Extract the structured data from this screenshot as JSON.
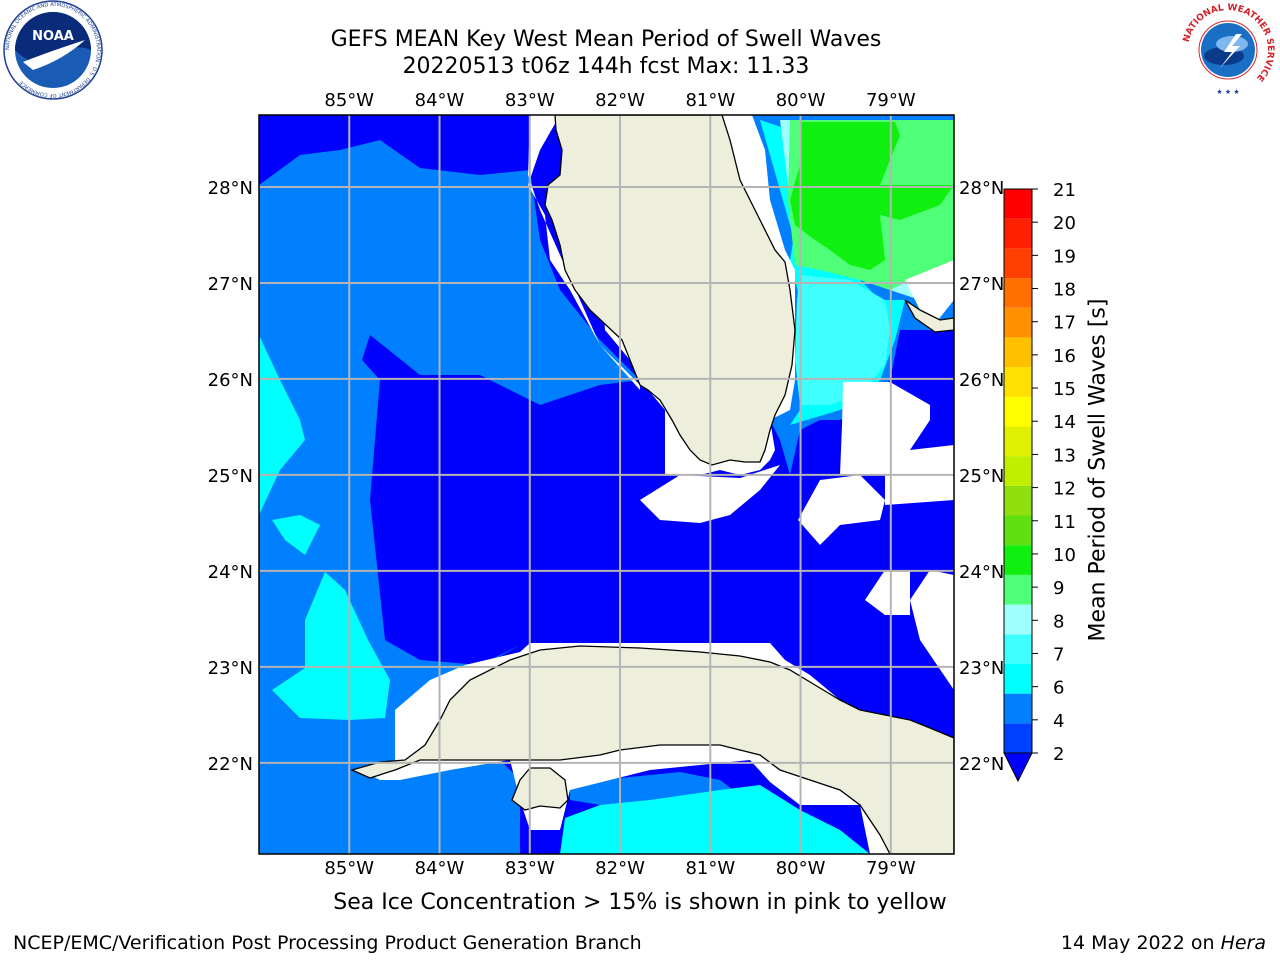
{
  "title": {
    "line1": "GEFS MEAN Key West Mean Period of Swell Waves",
    "line2": "20220513 t06z 144h fcst   Max: 11.33"
  },
  "map": {
    "lon_labels": [
      "85°W",
      "84°W",
      "83°W",
      "82°W",
      "81°W",
      "80°W",
      "79°W"
    ],
    "lon_values": [
      -85,
      -84,
      -83,
      -82,
      -81,
      -80,
      -79
    ],
    "lat_labels": [
      "28°N",
      "27°N",
      "26°N",
      "25°N",
      "24°N",
      "23°N",
      "22°N"
    ],
    "lat_values": [
      28,
      27,
      26,
      25,
      24,
      23,
      22
    ],
    "lon_range": [
      -86.0,
      -78.3
    ],
    "lat_range": [
      21.05,
      28.75
    ],
    "colors": {
      "band_2_4": "#0000ff",
      "band_4_6": "#0080ff",
      "band_6_7": "#00ffff",
      "band_7_8": "#40ffff",
      "band_8_9": "#9fffff",
      "band_9_10": "#50ff78",
      "band_10_11": "#10f010",
      "land": "#eeeedc",
      "missing": "#ffffff",
      "grid": "#b4b4b4"
    }
  },
  "colorbar": {
    "label": "Mean Period of Swell Waves [s]",
    "tick_labels": [
      "2",
      "4",
      "6",
      "7",
      "8",
      "9",
      "10",
      "11",
      "12",
      "13",
      "14",
      "15",
      "16",
      "17",
      "18",
      "19",
      "20",
      "21"
    ],
    "tick_values": [
      2,
      4,
      6,
      7,
      8,
      9,
      10,
      11,
      12,
      13,
      14,
      15,
      16,
      17,
      18,
      19,
      20,
      21
    ],
    "segment_colors": [
      "#0040ff",
      "#0080ff",
      "#00ffff",
      "#40ffff",
      "#a0ffff",
      "#50ff78",
      "#10f010",
      "#60e010",
      "#90e010",
      "#c0ef00",
      "#e0f000",
      "#ffff00",
      "#ffe000",
      "#ffc000",
      "#ff9000",
      "#ff7000",
      "#ff4000",
      "#ff2000",
      "#ff0000"
    ]
  },
  "logos": {
    "noaa_text": "NOAA",
    "noaa_ring_text": "NATIONAL OCEANIC AND ATMOSPHERIC ADMINISTRATION · U.S. DEPARTMENT OF COMMERCE",
    "nws_ring_text": "NATIONAL WEATHER SERVICE"
  },
  "note": "Sea Ice Concentration > 15% is shown in pink to yellow",
  "footer": {
    "left": "NCEP/EMC/Verification Post Processing Product Generation Branch",
    "right_date": "14 May 2022 on ",
    "right_host": "Hera"
  }
}
